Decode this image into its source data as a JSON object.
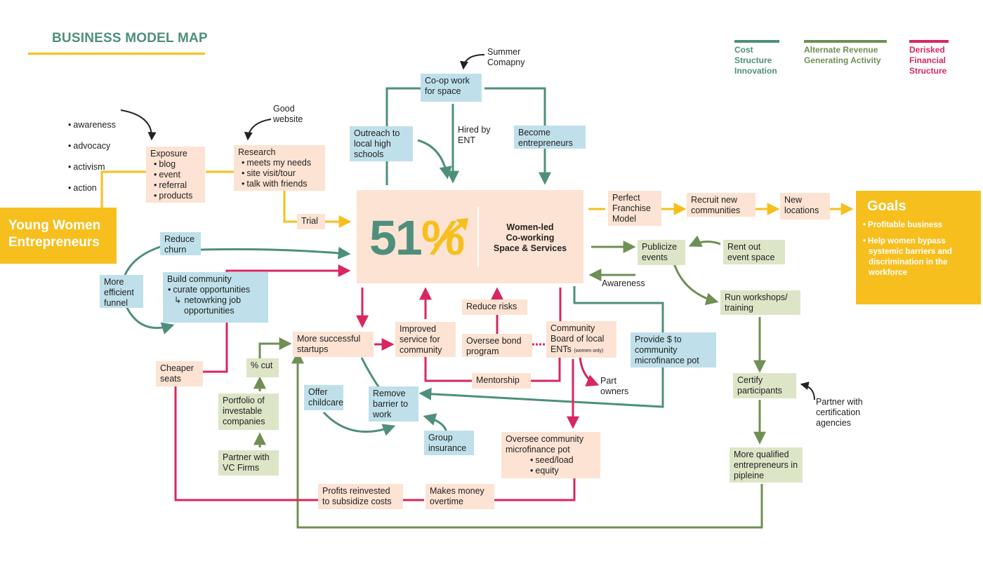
{
  "title": "BUSINESS MODEL MAP",
  "colors": {
    "green": "#4e8f7c",
    "olive": "#6f8f55",
    "red": "#d8275f",
    "gold": "#f7bf1e",
    "peach": "#fde3d3",
    "blue": "#bfe0ea",
    "sage": "#dde5c7"
  },
  "legend": [
    {
      "label": "Cost\nStructure\nInnovation",
      "color": "#4e8f7c"
    },
    {
      "label": "Alternate Revenue\nGenerating Activity",
      "color": "#6f8f55"
    },
    {
      "label": "Derisked\nFinancial\nStructure",
      "color": "#d8275f"
    }
  ],
  "nodes": {
    "young_women": "Young Women Entrepreneurs",
    "exposure": {
      "title": "Exposure",
      "items": [
        "blog",
        "event",
        "referral",
        "products"
      ]
    },
    "research": {
      "title": "Research",
      "items": [
        "meets my needs",
        "site visit/tour",
        "talk with friends"
      ]
    },
    "trial": "Trial",
    "center": {
      "number": "51",
      "percent": "%",
      "text": "Women-led\nCo-working\nSpace & Services"
    },
    "coop": "Co-op work for space",
    "outreach": "Outreach to local high schools",
    "become": "Become entrepreneurs",
    "reduce_churn": "Reduce churn",
    "build_community": {
      "title": "Build community",
      "item": "curate opportunities",
      "sub": "netowrking job opportunities"
    },
    "more_efficient": "More efficient funnel",
    "perfect_franchise": "Perfect Franchise Model",
    "recruit": "Recruit new communities",
    "new_locations": "New locations",
    "goals": {
      "title": "Goals",
      "items": [
        "Profitable business",
        "Help women bypass systemic barriers and discrimination in the workforce"
      ]
    },
    "publicize": "Publicize events",
    "rent_out": "Rent out event space",
    "run_workshops": "Run workshops/ training",
    "provide_money": "Provide $ to community microfinance pot",
    "certify": "Certify participants",
    "more_qualified": "More qualified entrepreneurs in pipleine",
    "more_startups": "More successful startups",
    "improved_service": "Improved service for community",
    "reduce_risks": "Reduce risks",
    "oversee_bond": "Oversee bond program",
    "community_board": "Community Board of local ENTs",
    "community_board_note": "(women only)",
    "mentorship": "Mentorship",
    "cheaper_seats": "Cheaper seats",
    "pct_cut": "% cut",
    "portfolio": "Portfolio of investable companies",
    "partner_vc": "Partner with VC Firms",
    "offer_childcare": "Offer childcare",
    "remove_barrier": "Remove barrier to work",
    "group_insurance": "Group insurance",
    "oversee_micro": {
      "title": "Oversee community microfinance pot",
      "items": [
        "seed/load",
        "equity"
      ]
    },
    "profits": "Profits reinvested to subsidize costs",
    "makes_money": "Makes money overtime"
  },
  "labels": {
    "awareness_list": [
      "awareness",
      "advocacy",
      "activism",
      "action"
    ],
    "good_website": "Good\nwebsite",
    "summer_company": "Summer\nComapny",
    "hired_by_ent": "Hired by\nENT",
    "awareness": "Awareness",
    "part_owners": "Part\nowners",
    "partner_cert": "Partner with\ncertification\nagencies"
  }
}
